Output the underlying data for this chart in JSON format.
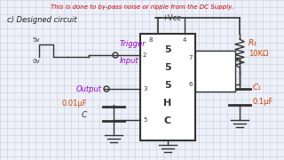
{
  "bg_color": "#eef0f8",
  "grid_color": "#c5cde0",
  "title_text": "This is done to by-pass noise or ripple from the DC Supply.",
  "title_color": "#cc0000",
  "title_fontsize": 5.0,
  "section_label": "c) Designed circuit",
  "section_color": "#222222",
  "section_fontsize": 6.0,
  "vcc_label": "+Vcc",
  "r1_label": "R₁",
  "r1_val": "10KΩ",
  "c1_label": "C₁",
  "c1_val": "0.1μF",
  "c_label": "0.01μF",
  "c_text": "C",
  "trigger_word": "Trigger",
  "input_word": "Input",
  "output_label": "Output",
  "sv_top": "5v",
  "sv_bot": "0v",
  "ic_pins_left": [
    "2",
    "3",
    "5"
  ],
  "ic_pins_top": [
    "8",
    "4"
  ],
  "ic_pins_right": [
    "7",
    "6"
  ],
  "ic_label": "5\n5\n5\nH\nC"
}
